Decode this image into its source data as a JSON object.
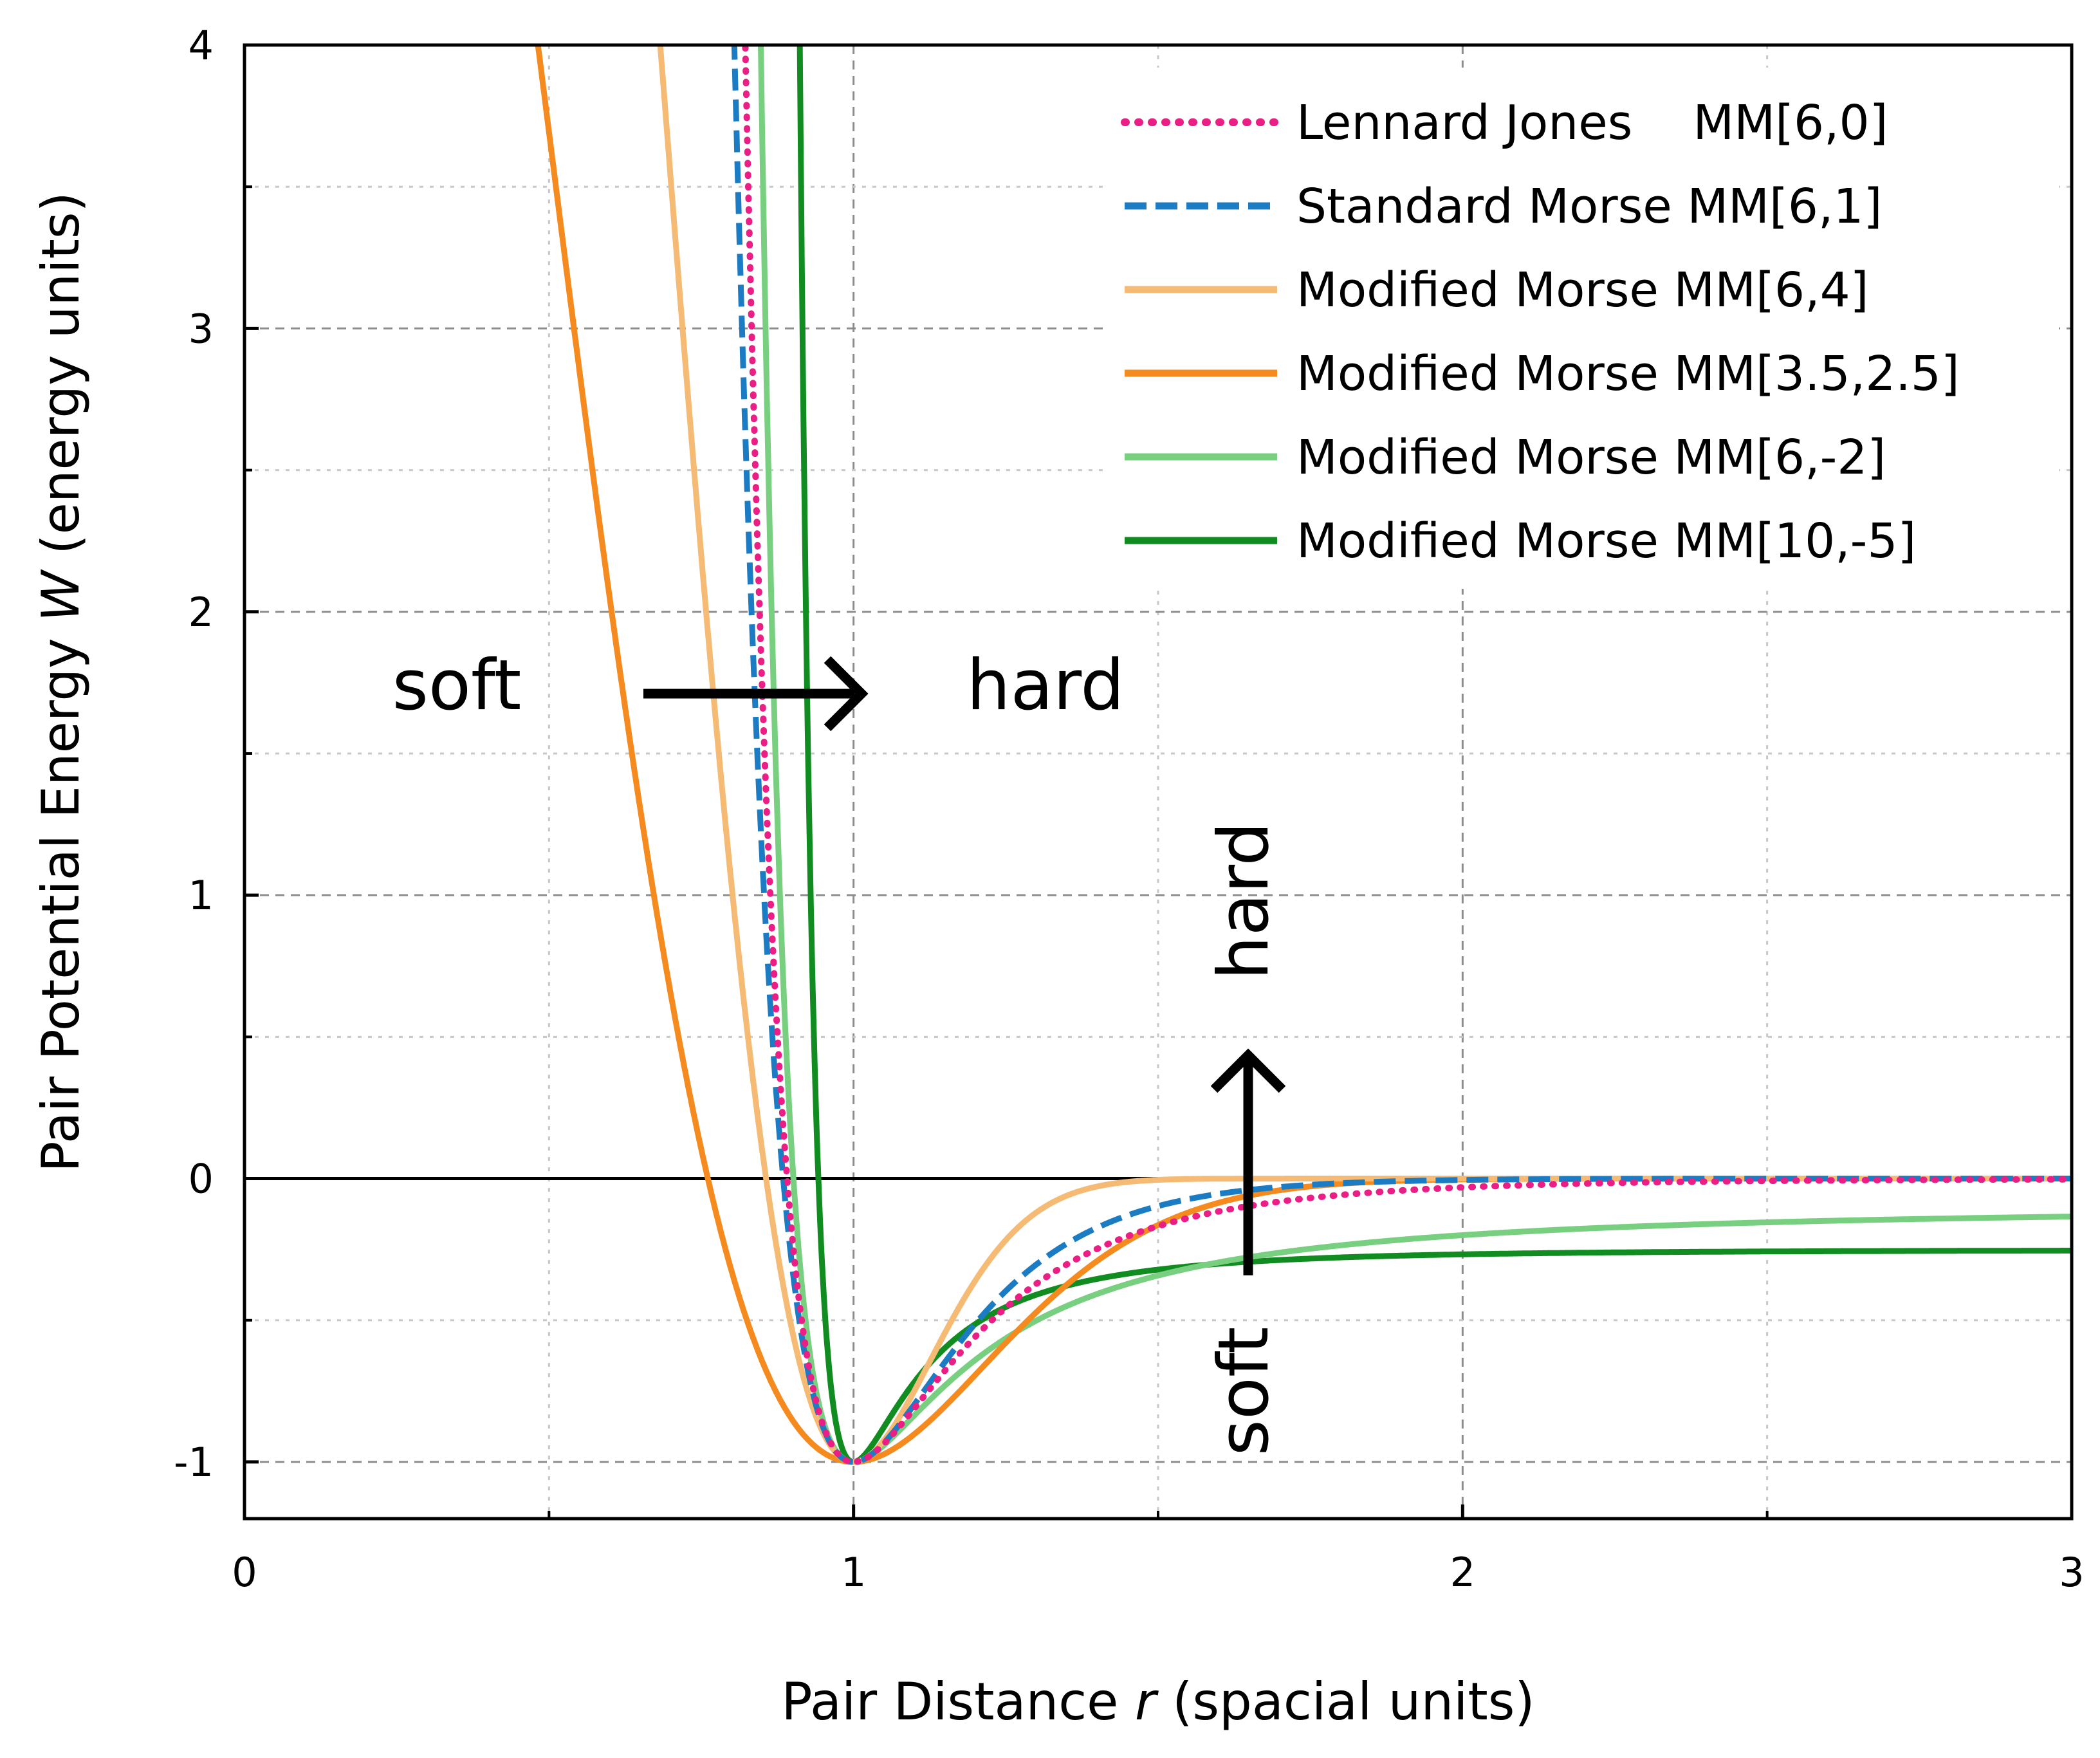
{
  "chart_data": {
    "type": "line",
    "title": "",
    "xlabel": {
      "prefix": "Pair Distance ",
      "var": "r",
      "suffix": " (spacial units)"
    },
    "ylabel": {
      "prefix": "Pair Potential Energy ",
      "var": "W",
      "suffix": " (energy units)"
    },
    "xlim": [
      0,
      3
    ],
    "ylim": [
      -1.2,
      4
    ],
    "xticks": [
      0,
      1,
      2,
      3
    ],
    "xtick_labels": [
      "0",
      "1",
      "2",
      "3"
    ],
    "yticks": [
      -1,
      0,
      1,
      2,
      3,
      4
    ],
    "ytick_labels": [
      "-1",
      "0",
      "1",
      "2",
      "3",
      "4"
    ],
    "x_minor_step": 0.5,
    "y_minor_step": 0.5,
    "grid": true,
    "legend_position": "top-right",
    "series": [
      {
        "name": "Lennard Jones    MM[6,0]",
        "model": "lj",
        "m": 6,
        "n": 0,
        "color": "#ea1e85",
        "style": "dotted"
      },
      {
        "name": "Standard Morse MM[6,1]",
        "model": "mm",
        "m": 6,
        "n": 1,
        "color": "#1b7cc4",
        "style": "dashed"
      },
      {
        "name": "Modified Morse MM[6,4]",
        "model": "mm",
        "m": 6,
        "n": 4,
        "color": "#f5bb74",
        "style": "solid"
      },
      {
        "name": "Modified Morse MM[3.5,2.5]",
        "model": "mm",
        "m": 3.5,
        "n": 2.5,
        "color": "#f58a1f",
        "style": "solid"
      },
      {
        "name": "Modified Morse MM[6,-2]",
        "model": "mm",
        "m": 6,
        "n": -2,
        "color": "#77cf7f",
        "style": "solid"
      },
      {
        "name": "Modified Morse MM[10,-5]",
        "model": "mm",
        "m": 10,
        "n": -5,
        "color": "#118c21",
        "style": "solid"
      }
    ],
    "annotations": {
      "horizontal": {
        "left": "soft",
        "right": "hard"
      },
      "vertical": {
        "bottom": "soft",
        "top": "hard"
      }
    }
  }
}
